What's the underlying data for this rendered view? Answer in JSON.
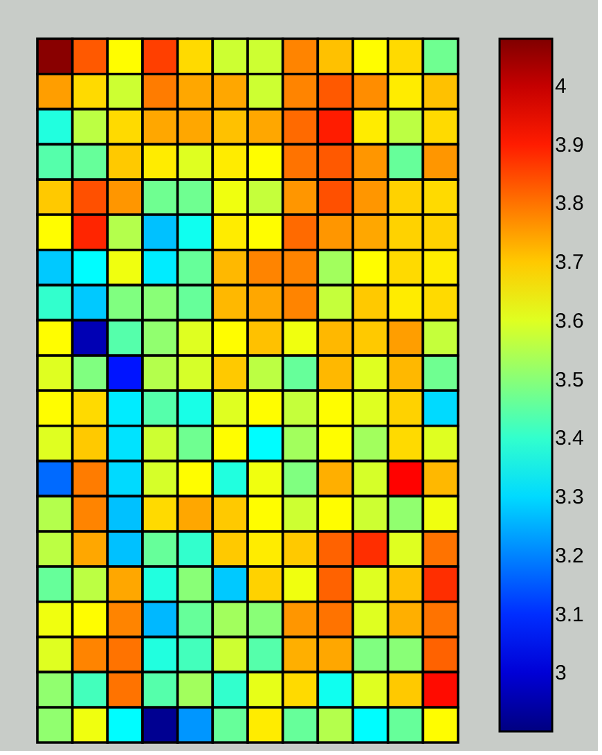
{
  "chart_data": {
    "type": "heatmap",
    "tick_labels": false,
    "categories": [
      null,
      null,
      null,
      null,
      null,
      null,
      null,
      null,
      null,
      null,
      null,
      null
    ],
    "y_categories": [
      null,
      null,
      null,
      null,
      null,
      null,
      null,
      null,
      null,
      null,
      null,
      null,
      null,
      null,
      null,
      null,
      null,
      null,
      null,
      null
    ],
    "cells": [
      [
        4.07,
        3.83,
        3.64,
        3.86,
        3.68,
        3.58,
        3.58,
        3.78,
        3.71,
        3.64,
        3.68,
        3.47
      ],
      [
        3.75,
        3.68,
        3.58,
        3.79,
        3.74,
        3.74,
        3.58,
        3.78,
        3.83,
        3.77,
        3.66,
        3.71
      ],
      [
        3.38,
        3.56,
        3.68,
        3.74,
        3.74,
        3.71,
        3.74,
        3.81,
        3.9,
        3.66,
        3.56,
        3.68
      ],
      [
        3.44,
        3.46,
        3.7,
        3.66,
        3.6,
        3.66,
        3.64,
        3.8,
        3.83,
        3.76,
        3.46,
        3.76
      ],
      [
        3.7,
        3.84,
        3.76,
        3.47,
        3.47,
        3.62,
        3.57,
        3.76,
        3.84,
        3.76,
        3.69,
        3.68
      ],
      [
        3.64,
        3.89,
        3.55,
        3.27,
        3.36,
        3.66,
        3.64,
        3.81,
        3.76,
        3.74,
        3.69,
        3.69
      ],
      [
        3.28,
        3.34,
        3.62,
        3.32,
        3.46,
        3.72,
        3.78,
        3.78,
        3.53,
        3.64,
        3.68,
        3.66
      ],
      [
        3.4,
        3.28,
        3.49,
        3.5,
        3.46,
        3.72,
        3.74,
        3.78,
        3.57,
        3.7,
        3.66,
        3.68
      ],
      [
        3.64,
        2.96,
        3.44,
        3.51,
        3.6,
        3.64,
        3.71,
        3.62,
        3.72,
        3.7,
        3.75,
        3.57
      ],
      [
        3.6,
        3.49,
        3.07,
        3.55,
        3.59,
        3.7,
        3.56,
        3.46,
        3.72,
        3.6,
        3.72,
        3.47
      ],
      [
        3.64,
        3.68,
        3.32,
        3.44,
        3.37,
        3.6,
        3.64,
        3.57,
        3.64,
        3.6,
        3.69,
        3.3
      ],
      [
        3.6,
        3.7,
        3.31,
        3.58,
        3.47,
        3.64,
        3.34,
        3.53,
        3.64,
        3.53,
        3.68,
        3.6
      ],
      [
        3.17,
        3.79,
        3.3,
        3.59,
        3.64,
        3.38,
        3.62,
        3.49,
        3.73,
        3.59,
        3.93,
        3.72
      ],
      [
        3.55,
        3.78,
        3.27,
        3.68,
        3.74,
        3.7,
        3.64,
        3.58,
        3.64,
        3.58,
        3.51,
        3.62
      ],
      [
        3.56,
        3.74,
        3.27,
        3.46,
        3.4,
        3.7,
        3.66,
        3.7,
        3.82,
        3.88,
        3.6,
        3.8
      ],
      [
        3.46,
        3.56,
        3.74,
        3.38,
        3.5,
        3.28,
        3.69,
        3.62,
        3.82,
        3.6,
        3.71,
        3.88
      ],
      [
        3.62,
        3.64,
        3.78,
        3.26,
        3.46,
        3.53,
        3.5,
        3.76,
        3.8,
        3.6,
        3.73,
        3.8
      ],
      [
        3.6,
        3.78,
        3.8,
        3.38,
        3.42,
        3.58,
        3.44,
        3.73,
        3.74,
        3.49,
        3.5,
        3.82
      ],
      [
        3.51,
        3.42,
        3.8,
        3.44,
        3.53,
        3.4,
        3.61,
        3.68,
        3.36,
        3.6,
        3.7,
        3.92
      ],
      [
        3.51,
        3.62,
        3.34,
        2.92,
        3.22,
        3.46,
        3.66,
        3.46,
        3.55,
        3.34,
        3.46,
        3.64
      ]
    ],
    "clim": [
      2.9,
      4.08
    ],
    "cticks": [
      3,
      3.1,
      3.2,
      3.3,
      3.4,
      3.5,
      3.6,
      3.7,
      3.8,
      3.9,
      4
    ]
  }
}
